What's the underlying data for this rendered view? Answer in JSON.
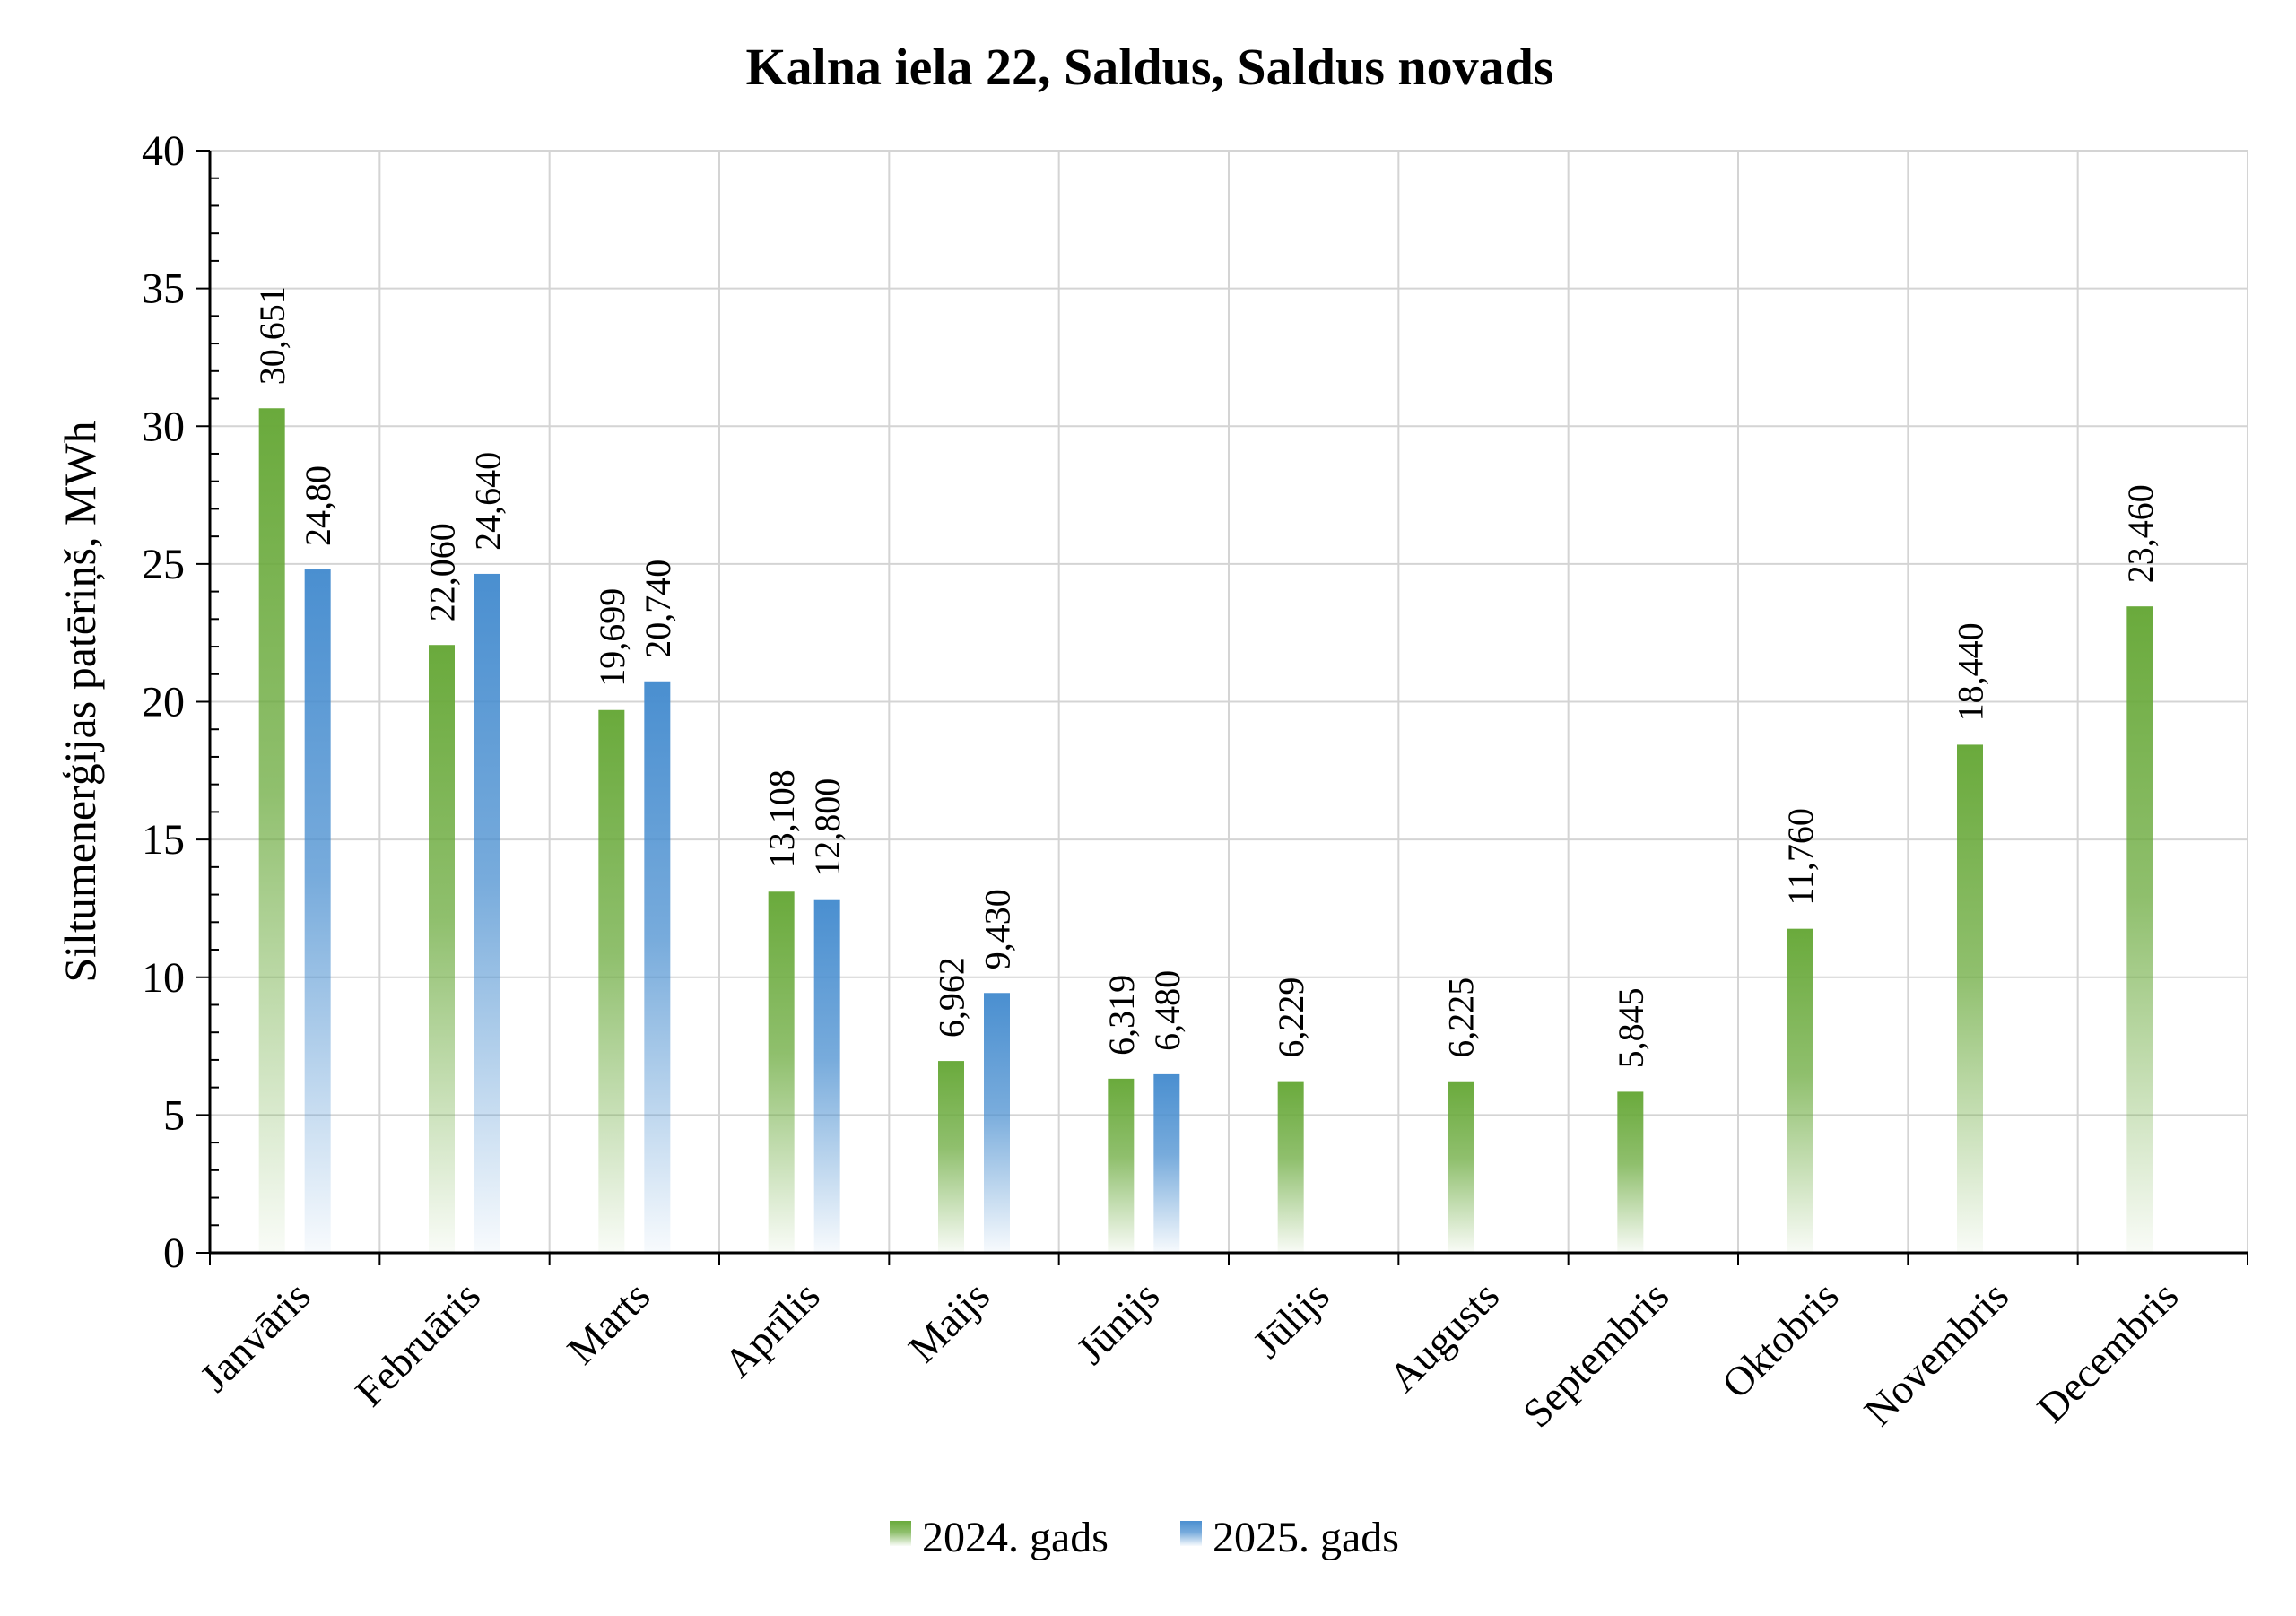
{
  "chart_data": {
    "type": "bar",
    "title": "Kalna iela 22, Saldus, Saldus novads",
    "xlabel": "",
    "ylabel": "Siltumenerģijas patēriņš, MWh",
    "ylim": [
      0,
      40
    ],
    "yticks": [
      "0",
      "5",
      "10",
      "15",
      "20",
      "25",
      "30",
      "35",
      "40"
    ],
    "grid": true,
    "legend_position": "bottom",
    "categories": [
      "Janvāris",
      "Februāris",
      "Marts",
      "Aprīlis",
      "Maijs",
      "Jūnijs",
      "Jūlijs",
      "Augusts",
      "Septembris",
      "Oktobris",
      "Novembris",
      "Decembris"
    ],
    "series": [
      {
        "name": "2024. gads",
        "color": "#6aaa3c",
        "values": [
          30.651,
          22.06,
          19.699,
          13.108,
          6.962,
          6.319,
          6.229,
          6.225,
          5.845,
          11.76,
          18.44,
          23.46
        ],
        "labels": [
          "30,651",
          "22,060",
          "19,699",
          "13,108",
          "6,962",
          "6,319",
          "6,229",
          "6,225",
          "5,845",
          "11,760",
          "18,440",
          "23,460"
        ]
      },
      {
        "name": "2025. gads",
        "color": "#4a8fd0",
        "values": [
          24.8,
          24.64,
          20.74,
          12.8,
          9.43,
          6.48,
          null,
          null,
          null,
          null,
          null,
          null
        ],
        "labels": [
          "24,80",
          "24,640",
          "20,740",
          "12,800",
          "9,430",
          "6,480",
          null,
          null,
          null,
          null,
          null,
          null
        ]
      }
    ]
  }
}
